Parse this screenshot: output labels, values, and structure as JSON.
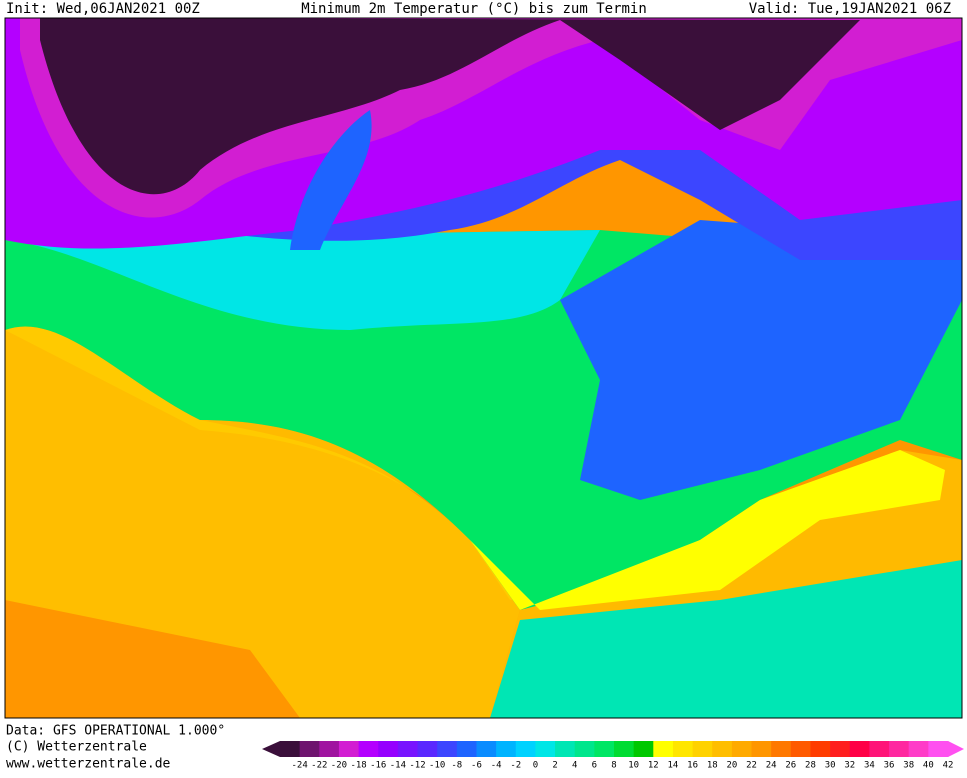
{
  "header": {
    "init": "Init: Wed,06JAN2021 00Z",
    "title": "Minimum 2m Temperatur (°C) bis zum Termin",
    "valid": "Valid: Tue,19JAN2021 06Z"
  },
  "footer": {
    "data": "Data: GFS OPERATIONAL 1.000°",
    "copyright": "(C) Wetterzentrale",
    "url": "www.wetterzentrale.de"
  },
  "legend": {
    "levels": [
      {
        "value": -24,
        "color": "#3a0f3a"
      },
      {
        "value": -22,
        "color": "#6e146e"
      },
      {
        "value": -20,
        "color": "#a014a0"
      },
      {
        "value": -18,
        "color": "#d21ed2"
      },
      {
        "value": -16,
        "color": "#b400ff"
      },
      {
        "value": -14,
        "color": "#9600ff"
      },
      {
        "value": -12,
        "color": "#7814ff"
      },
      {
        "value": -10,
        "color": "#5a28ff"
      },
      {
        "value": -8,
        "color": "#3c46ff"
      },
      {
        "value": -6,
        "color": "#1e64ff"
      },
      {
        "value": -4,
        "color": "#0a8cff"
      },
      {
        "value": -2,
        "color": "#00b4ff"
      },
      {
        "value": 0,
        "color": "#00d2ff"
      },
      {
        "value": 2,
        "color": "#00e6e6"
      },
      {
        "value": 4,
        "color": "#00e6b4"
      },
      {
        "value": 6,
        "color": "#00e68c"
      },
      {
        "value": 8,
        "color": "#00e664"
      },
      {
        "value": 10,
        "color": "#00dc32"
      },
      {
        "value": 12,
        "color": "#00c800"
      },
      {
        "value": 14,
        "color": "#ffff00"
      },
      {
        "value": 16,
        "color": "#ffe600"
      },
      {
        "value": 18,
        "color": "#ffd200"
      },
      {
        "value": 20,
        "color": "#ffbe00"
      },
      {
        "value": 22,
        "color": "#ffaa00"
      },
      {
        "value": 24,
        "color": "#ff9600"
      },
      {
        "value": 26,
        "color": "#ff7800"
      },
      {
        "value": 28,
        "color": "#ff5a00"
      },
      {
        "value": 30,
        "color": "#ff3c00"
      },
      {
        "value": 32,
        "color": "#ff1e1e"
      },
      {
        "value": 34,
        "color": "#ff0046"
      },
      {
        "value": 36,
        "color": "#ff1478"
      },
      {
        "value": 38,
        "color": "#ff28a0"
      },
      {
        "value": 40,
        "color": "#ff3cc8"
      },
      {
        "value": 42,
        "color": "#ff50f0"
      }
    ]
  }
}
